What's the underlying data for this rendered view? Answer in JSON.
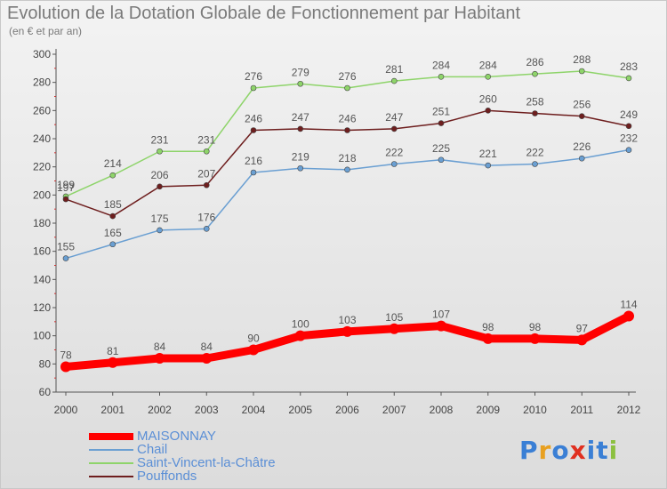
{
  "title": "Evolution de la Dotation Globale de Fonctionnement par Habitant",
  "subtitle": "(en € et par an)",
  "brand": {
    "text": "Proxiti",
    "colors": [
      "#3a7fd5",
      "#e8a020",
      "#3a7fd5",
      "#e03020",
      "#3a7fd5",
      "#3a7fd5",
      "#8cc040"
    ]
  },
  "chart_data": {
    "type": "line",
    "title": "Evolution de la Dotation Globale de Fonctionnement par Habitant",
    "ylabel": "(en € et par an)",
    "xlabel": "",
    "ylim": [
      60,
      300
    ],
    "yticks": [
      60,
      80,
      100,
      120,
      140,
      160,
      180,
      200,
      220,
      240,
      260,
      280,
      300
    ],
    "categories": [
      "2000",
      "2001",
      "2002",
      "2003",
      "2004",
      "2005",
      "2006",
      "2007",
      "2008",
      "2009",
      "2010",
      "2011",
      "2012"
    ],
    "legend_position": "bottom-left",
    "grid": false,
    "series": [
      {
        "name": "Saint-Vincent-la-Châtre",
        "color": "#8ed46a",
        "values": [
          199,
          214,
          231,
          231,
          276,
          279,
          276,
          281,
          284,
          284,
          286,
          288,
          283
        ]
      },
      {
        "name": "Pouffonds",
        "color": "#6e1e1e",
        "values": [
          197,
          185,
          206,
          207,
          246,
          247,
          246,
          247,
          251,
          260,
          258,
          256,
          249
        ]
      },
      {
        "name": "Chail",
        "color": "#6a9fd2",
        "values": [
          155,
          165,
          175,
          176,
          216,
          219,
          218,
          222,
          225,
          221,
          222,
          226,
          232
        ]
      },
      {
        "name": "MAISONNAY",
        "color": "#ff0000",
        "values": [
          78,
          81,
          84,
          84,
          90,
          100,
          103,
          105,
          107,
          98,
          98,
          97,
          114
        ]
      }
    ],
    "legend_order": [
      "MAISONNAY",
      "Chail",
      "Saint-Vincent-la-Châtre",
      "Pouffonds"
    ],
    "labels": {
      "Saint-Vincent-la-Châtre": [
        "199",
        "214",
        "231",
        "231",
        "276",
        "279",
        "276",
        "281",
        "284",
        "284",
        "286",
        "288",
        "283"
      ],
      "Pouffonds": [
        "197",
        "185",
        "206",
        "207",
        "246",
        "247",
        "246",
        "247",
        "251",
        "260",
        "258",
        "256",
        "249"
      ],
      "Chail": [
        "155",
        "165",
        "175",
        "176",
        "216",
        "219",
        "218",
        "222",
        "225",
        "221",
        "222",
        "226",
        "232"
      ],
      "MAISONNAY": [
        "78",
        "81",
        "84",
        "84",
        "90",
        "100",
        "103",
        "105",
        "107",
        "98",
        "98",
        "97",
        "114"
      ]
    }
  }
}
